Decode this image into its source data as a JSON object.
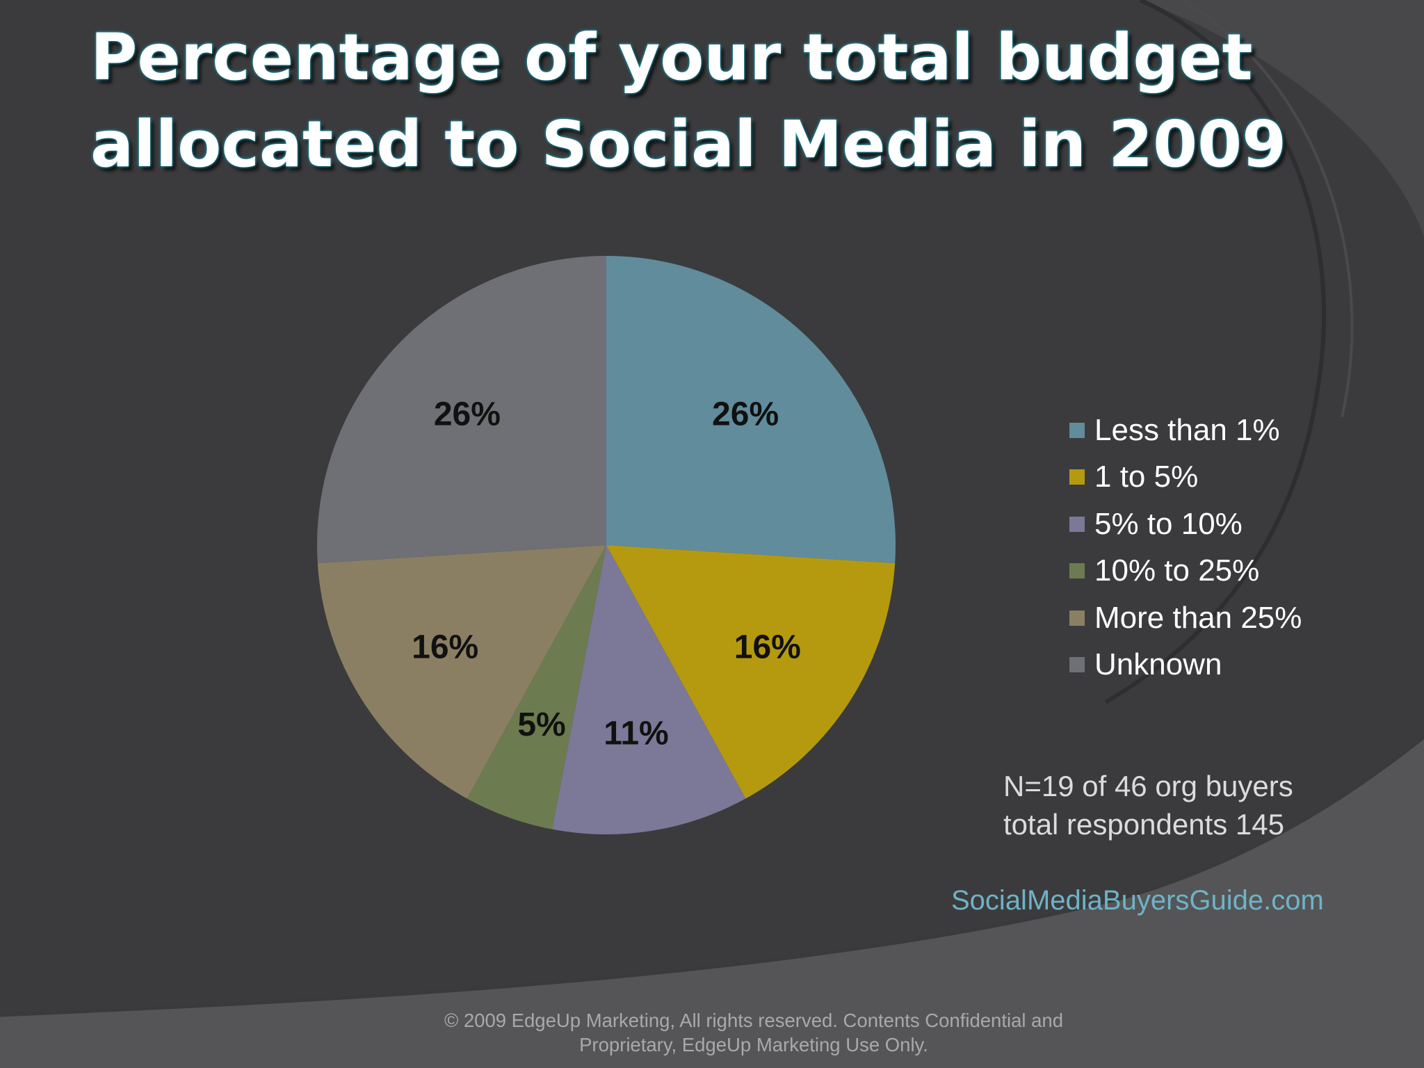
{
  "title": {
    "line1": "Percentage of your total budget",
    "line2": "allocated to Social Media in 2009"
  },
  "chart_data": {
    "type": "pie",
    "title": "Percentage of your total budget allocated to Social Media in 2009",
    "categories": [
      "Less than 1%",
      "1 to 5%",
      "5% to 10%",
      "10% to 25%",
      "More than 25%",
      "Unknown"
    ],
    "values": [
      26,
      16,
      11,
      5,
      16,
      26
    ],
    "labels": [
      "26%",
      "16%",
      "11%",
      "5%",
      "16%",
      "26%"
    ],
    "colors": [
      "#618c9c",
      "#b59a10",
      "#7b7898",
      "#6c7c50",
      "#8b7f63",
      "#6e7075"
    ],
    "start_angle": "12 o'clock",
    "direction": "clockwise",
    "legend_position": "right"
  },
  "note": {
    "line1": "N=19 of 46 org buyers",
    "line2": "total respondents 145"
  },
  "site_url": "SocialMediaBuyersGuide.com",
  "footer": {
    "line1": "© 2009 EdgeUp Marketing, All rights reserved. Contents Confidential and",
    "line2": "Proprietary, EdgeUp Marketing Use Only."
  },
  "colors": {
    "background": "#3b3b3d",
    "accent_text": "#6fb3c6"
  }
}
